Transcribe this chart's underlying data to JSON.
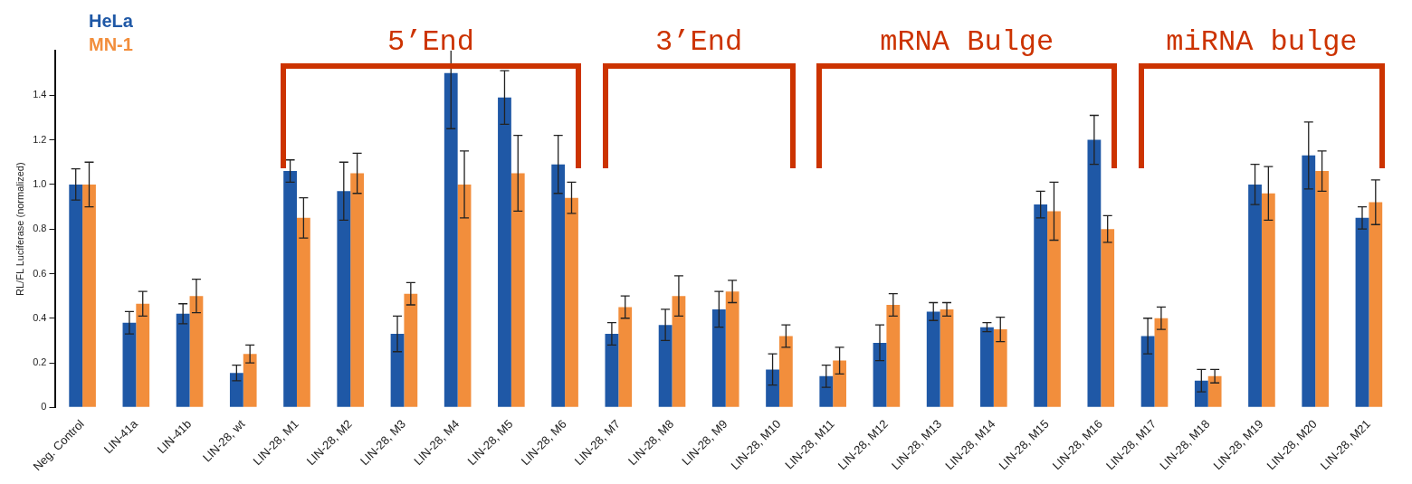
{
  "chart_data": {
    "type": "bar",
    "ylabel": "RL/FL Luciferase (normalized)",
    "categories": [
      "Neg. Control",
      "LIN-41a",
      "LIN-41b",
      "LIN-28, wt",
      "LIN-28, M1",
      "LIN-28, M2",
      "LIN-28, M3",
      "LIN-28, M4",
      "LIN-28, M5",
      "LIN-28, M6",
      "LIN-28, M7",
      "LIN-28, M8",
      "LIN-28, M9",
      "LIN-28, M10",
      "LIN-28, M11",
      "LIN-28, M12",
      "LIN-28, M13",
      "LIN-28, M14",
      "LIN-28, M15",
      "LIN-28, M16",
      "LIN-28, M17",
      "LIN-28, M18",
      "LIN-28, M19",
      "LIN-28, M20",
      "LIN-28, M21"
    ],
    "series": [
      {
        "name": "HeLa",
        "color": "#1f58a6",
        "values": [
          1.0,
          0.38,
          0.42,
          0.155,
          1.06,
          0.97,
          0.33,
          1.5,
          1.39,
          1.09,
          0.33,
          0.37,
          0.44,
          0.17,
          0.14,
          0.29,
          0.43,
          0.36,
          0.91,
          1.2,
          0.32,
          0.12,
          1.0,
          1.13,
          0.85
        ],
        "errors": [
          0.07,
          0.05,
          0.045,
          0.035,
          0.05,
          0.13,
          0.08,
          [
            1.25,
            1.6
          ],
          0.12,
          0.13,
          0.05,
          0.07,
          0.08,
          0.07,
          0.05,
          0.08,
          0.04,
          0.02,
          0.06,
          0.11,
          0.08,
          0.05,
          0.09,
          0.15,
          0.05
        ]
      },
      {
        "name": "MN-1",
        "color": "#f28e3c",
        "values": [
          1.0,
          0.465,
          0.5,
          0.24,
          0.85,
          1.05,
          0.51,
          1.0,
          1.05,
          0.94,
          0.45,
          0.5,
          0.52,
          0.32,
          0.21,
          0.46,
          0.44,
          0.35,
          0.88,
          0.8,
          0.4,
          0.14,
          0.96,
          1.06,
          0.92
        ],
        "errors": [
          0.1,
          0.055,
          0.075,
          0.04,
          0.09,
          0.09,
          0.05,
          0.15,
          0.17,
          0.07,
          0.05,
          0.09,
          0.05,
          0.05,
          0.06,
          0.05,
          0.03,
          0.055,
          0.13,
          0.06,
          0.05,
          0.03,
          0.12,
          0.09,
          0.1
        ]
      }
    ],
    "ylim": [
      0,
      1.6
    ],
    "yticks": [
      0,
      0.2,
      0.4,
      0.6,
      0.8,
      {
        "value": 1,
        "label": "1.0"
      },
      1.2,
      1.4
    ],
    "grid": false,
    "legend": "top left",
    "annotations": [
      "5’End",
      "3’End",
      "mRNA Bulge",
      "miRNA bulge"
    ]
  }
}
